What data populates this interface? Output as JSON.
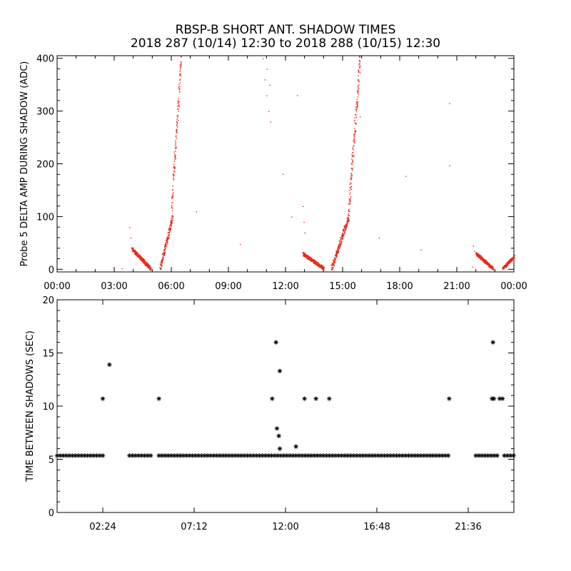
{
  "header": {
    "title": "RBSP-B SHORT ANT. SHADOW TIMES",
    "subtitle": "2018 287 (10/14) 12:30 to 2018 288 (10/15) 12:30"
  },
  "colors": {
    "scatter": "#e8281a",
    "axes": "#000000",
    "background": "#ffffff"
  },
  "chart_data": [
    {
      "type": "scatter",
      "title": "",
      "ylabel": "Probe 5 DELTA AMP DURING SHADOW (ADC)",
      "xlabel": "",
      "xlim": [
        0,
        24
      ],
      "ylim": [
        -5,
        405
      ],
      "x_ticks": [
        0,
        3,
        6,
        9,
        12,
        15,
        18,
        21,
        24
      ],
      "x_tick_labels": [
        "00:00",
        "03:00",
        "06:00",
        "09:00",
        "12:00",
        "15:00",
        "18:00",
        "21:00",
        "00:00"
      ],
      "y_ticks": [
        0,
        100,
        200,
        300,
        400
      ],
      "y_tick_labels": [
        "0",
        "100",
        "200",
        "300",
        "400"
      ],
      "grid": false,
      "series_color": "#e8281a",
      "segments": [
        {
          "x0": 3.9,
          "x1": 4.9,
          "y0": 40,
          "y1": 2
        },
        {
          "x0": 5.4,
          "x1": 6.05,
          "y0": 2,
          "y1": 100
        },
        {
          "x0": 6.0,
          "x1": 6.5,
          "y0": 120,
          "y1": 400
        },
        {
          "x0": 12.9,
          "x1": 14.0,
          "y0": 30,
          "y1": 2
        },
        {
          "x0": 14.4,
          "x1": 15.3,
          "y0": 2,
          "y1": 100
        },
        {
          "x0": 15.3,
          "x1": 15.9,
          "y0": 110,
          "y1": 400
        },
        {
          "x0": 22.0,
          "x1": 22.9,
          "y0": 30,
          "y1": 2
        },
        {
          "x0": 23.4,
          "x1": 24.0,
          "y0": 2,
          "y1": 25
        }
      ],
      "isolated_points": [
        [
          10.8,
          400
        ],
        [
          10.9,
          360
        ],
        [
          11.0,
          330
        ],
        [
          11.1,
          300
        ],
        [
          11.2,
          280
        ],
        [
          11.0,
          380
        ],
        [
          11.15,
          350
        ],
        [
          3.8,
          80
        ],
        [
          3.85,
          60
        ],
        [
          12.9,
          120
        ],
        [
          12.95,
          90
        ],
        [
          13.0,
          70
        ],
        [
          21.85,
          45
        ],
        [
          21.9,
          35
        ],
        [
          12.6,
          330
        ],
        [
          20.6,
          315
        ],
        [
          20.6,
          197
        ],
        [
          18.3,
          177
        ],
        [
          11.85,
          181
        ],
        [
          7.3,
          110
        ],
        [
          9.6,
          48
        ],
        [
          12.3,
          100
        ],
        [
          16.9,
          60
        ],
        [
          19.1,
          38
        ],
        [
          21.8,
          5
        ],
        [
          3.4,
          2
        ],
        [
          15.9,
          290
        ],
        [
          15.8,
          350
        ]
      ]
    },
    {
      "type": "scatter",
      "title": "",
      "ylabel": "TIME BETWEEN SHADOWS (SEC)",
      "xlabel": "",
      "xlim": [
        0,
        24
      ],
      "ylim": [
        0,
        20
      ],
      "x_ticks": [
        2.4,
        7.2,
        12.0,
        16.8,
        21.6
      ],
      "x_tick_labels": [
        "02:24",
        "07:12",
        "12:00",
        "16:48",
        "21:36"
      ],
      "y_ticks": [
        0,
        5,
        10,
        15,
        20
      ],
      "y_tick_labels": [
        "0",
        "5",
        "10",
        "15",
        "20"
      ],
      "grid": false,
      "marker": "asterisk",
      "baseline": {
        "value": 5.35,
        "ranges": [
          [
            0.0,
            2.45
          ],
          [
            3.8,
            4.95
          ],
          [
            5.35,
            20.7
          ],
          [
            22.0,
            23.2
          ],
          [
            23.5,
            24.0
          ]
        ]
      },
      "points": [
        [
          2.4,
          10.7
        ],
        [
          2.75,
          13.9
        ],
        [
          5.35,
          10.7
        ],
        [
          11.3,
          10.7
        ],
        [
          11.5,
          16.0
        ],
        [
          11.55,
          7.9
        ],
        [
          11.7,
          13.3
        ],
        [
          11.65,
          7.2
        ],
        [
          11.7,
          6.0
        ],
        [
          12.55,
          6.2
        ],
        [
          13.0,
          10.7
        ],
        [
          13.6,
          10.7
        ],
        [
          14.3,
          10.7
        ],
        [
          20.6,
          10.7
        ],
        [
          22.9,
          16.0
        ],
        [
          22.85,
          10.7
        ],
        [
          22.95,
          10.7
        ],
        [
          23.25,
          10.7
        ],
        [
          23.4,
          10.7
        ]
      ]
    }
  ]
}
